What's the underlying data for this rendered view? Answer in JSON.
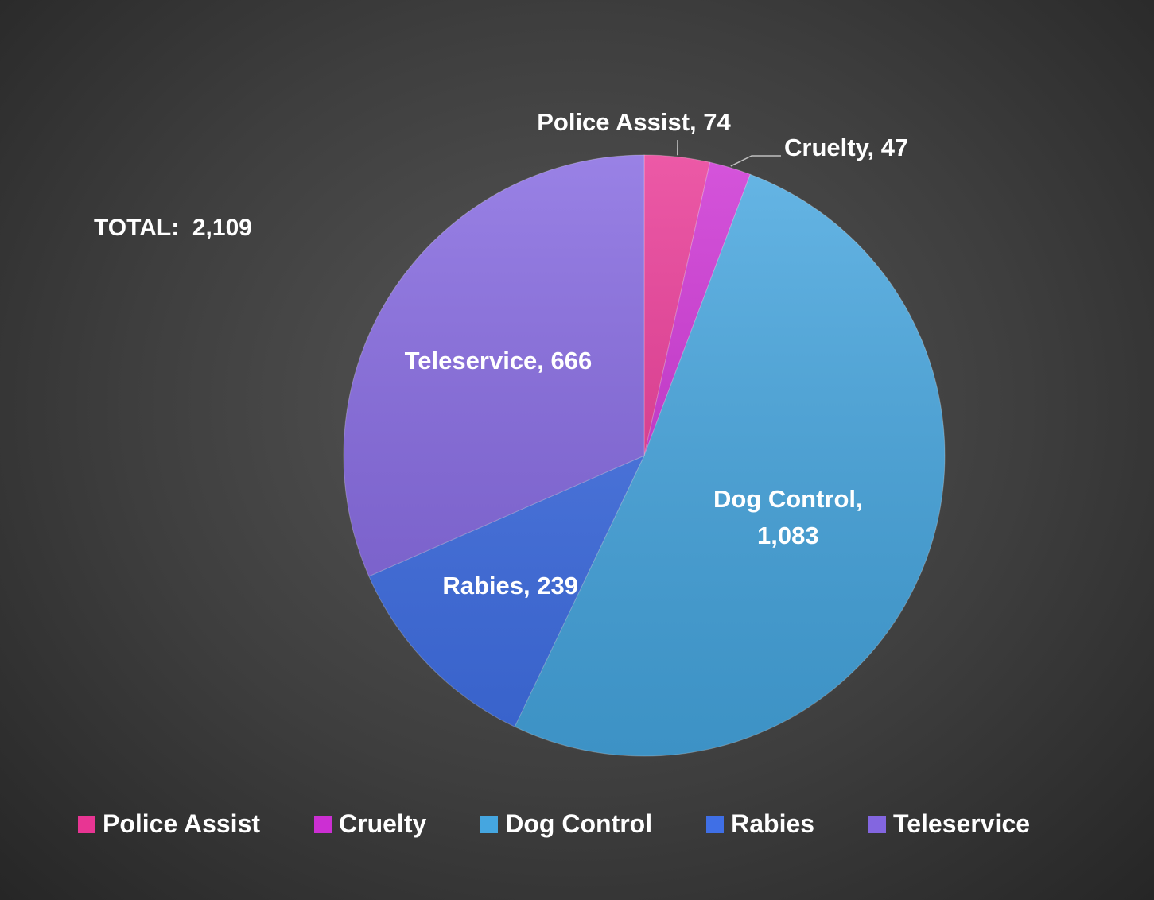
{
  "chart_data": {
    "type": "pie",
    "title": "",
    "total_text": "TOTAL:  2,109",
    "categories": [
      "Police Assist",
      "Cruelty",
      "Dog Control",
      "Rabies",
      "Teleservice"
    ],
    "values": [
      74,
      47,
      1083,
      239,
      666
    ],
    "value_labels": [
      "74",
      "47",
      "1,083",
      "239",
      "666"
    ],
    "colors": [
      "#e83593",
      "#cc2fd3",
      "#45a6e0",
      "#3f6fe6",
      "#8366e0"
    ],
    "legend_position": "bottom",
    "start_angle_deg": 0,
    "direction": "clockwise"
  }
}
